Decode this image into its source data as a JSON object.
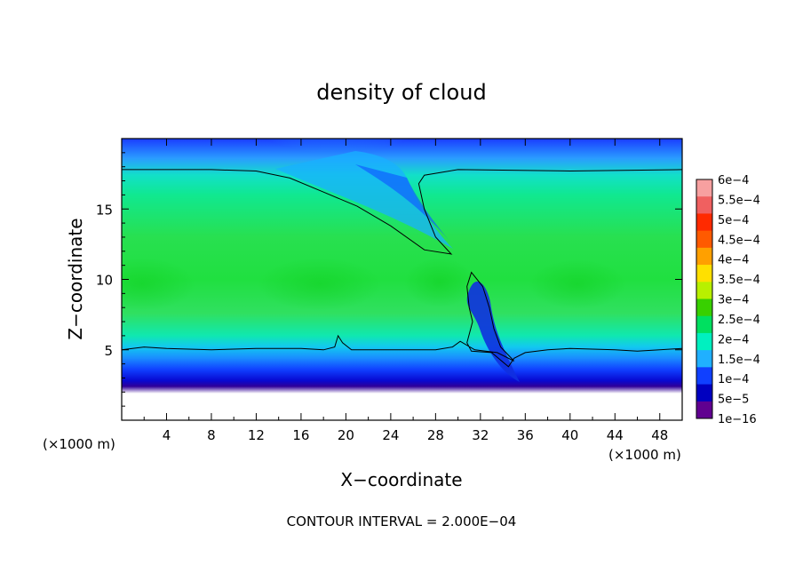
{
  "chart_data": {
    "type": "heatmap",
    "title": "density of cloud",
    "xlabel": "X−coordinate",
    "ylabel": "Z−coordinate",
    "x_unit": "(×1000 m)",
    "x_unit_right": "(×1000 m)",
    "xlim": [
      0,
      50
    ],
    "ylim": [
      0,
      20
    ],
    "x_ticks": [
      "4",
      "8",
      "12",
      "16",
      "20",
      "24",
      "28",
      "32",
      "36",
      "40",
      "44",
      "48"
    ],
    "y_ticks": [
      "5",
      "10",
      "15"
    ],
    "footer": "CONTOUR INTERVAL = 2.000E−04",
    "colorbar": {
      "labels": [
        "6e−4",
        "5.5e−4",
        "5e−4",
        "4.5e−4",
        "4e−4",
        "3.5e−4",
        "3e−4",
        "2.5e−4",
        "2e−4",
        "1.5e−4",
        "1e−4",
        "5e−5",
        "1e−16"
      ],
      "colors": [
        "#f7a0a0",
        "#f06060",
        "#ff2a00",
        "#ff5a00",
        "#ffa000",
        "#ffe000",
        "#b8f000",
        "#38d000",
        "#00e060",
        "#00f0c0",
        "#20b0ff",
        "#1040ff",
        "#0000c0",
        "#600090"
      ]
    },
    "contours": [
      {
        "level": "2e−4",
        "points": [
          [
            0,
            17.8
          ],
          [
            8,
            17.8
          ],
          [
            12,
            17.7
          ],
          [
            15,
            17.2
          ],
          [
            18,
            16.2
          ],
          [
            21,
            15.2
          ],
          [
            24,
            13.8
          ],
          [
            27,
            12.1
          ],
          [
            29.4,
            11.8
          ],
          [
            28,
            13
          ],
          [
            27,
            15
          ],
          [
            26.5,
            16.8
          ],
          [
            27,
            17.4
          ],
          [
            30,
            17.8
          ],
          [
            40,
            17.7
          ],
          [
            50,
            17.8
          ]
        ]
      },
      {
        "level": "2e−4",
        "points": [
          [
            0,
            5
          ],
          [
            2,
            5.2
          ],
          [
            4,
            5.1
          ],
          [
            8,
            5.0
          ],
          [
            12,
            5.1
          ],
          [
            16,
            5.1
          ],
          [
            18,
            5.0
          ],
          [
            19,
            5.2
          ],
          [
            19.3,
            6.0
          ],
          [
            19.7,
            5.5
          ],
          [
            20.5,
            5.0
          ],
          [
            24,
            5.0
          ],
          [
            28,
            5.0
          ],
          [
            29.5,
            5.2
          ],
          [
            30.2,
            5.6
          ],
          [
            31.5,
            5.0
          ],
          [
            33.5,
            4.8
          ],
          [
            35,
            4.2
          ],
          [
            33.8,
            5.2
          ],
          [
            33.2,
            6.5
          ],
          [
            32.8,
            8.0
          ],
          [
            32.2,
            9.5
          ],
          [
            31.2,
            10.5
          ],
          [
            30.8,
            9.5
          ],
          [
            31,
            8
          ],
          [
            31.3,
            7
          ],
          [
            30.8,
            5.5
          ],
          [
            31.2,
            4.9
          ],
          [
            33,
            4.8
          ],
          [
            34.5,
            3.8
          ],
          [
            35,
            4.4
          ],
          [
            36,
            4.8
          ],
          [
            38,
            5.0
          ],
          [
            40,
            5.1
          ],
          [
            44,
            5.0
          ],
          [
            46,
            4.9
          ],
          [
            48,
            5.0
          ],
          [
            50,
            5.1
          ]
        ]
      }
    ]
  }
}
